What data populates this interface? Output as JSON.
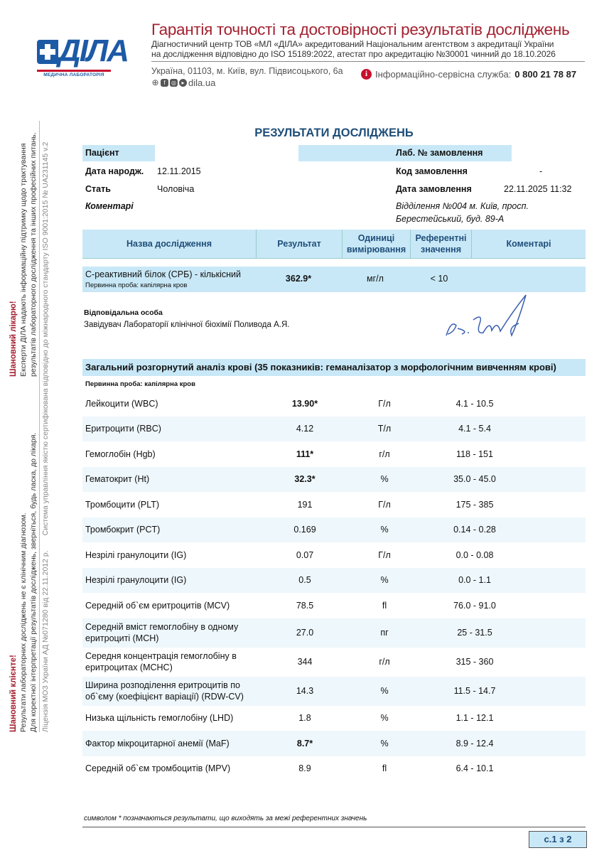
{
  "header": {
    "logo_text": "ДІЛА",
    "logo_subtitle": "МЕДИЧНА ЛАБОРАТОРІЯ",
    "title": "Гарантія точності та достовірності результатів досліджень",
    "accreditation_line1": "Діагностичний центр ТОВ «МЛ «ДІЛА» акредитований Національним агентством з акредитації України",
    "accreditation_line2": "на дослідження відповідно до ISO 15189:2022, атестат про акредитацію №30001 чинний до 18.10.2026",
    "address": "Україна, 01103, м. Київ, вул. Підвисоцького, 6а",
    "website": "dila.ua",
    "info_label": "Інформаційно-сервісна служба:",
    "info_phone": "0 800 21 78 87",
    "colors": {
      "brand_blue": "#1c5aa6",
      "brand_red": "#c8102e",
      "title_red": "#a3202f"
    }
  },
  "sidebar": {
    "client_heading": "Шановний клієнте!",
    "client_line1": "Результати лабораторних досліджень не є клінічним діагнозом.",
    "client_line2": "Для коректної інтерпретації результатів досліджень, зверніться, будь ласка, до лікаря.",
    "doctor_heading": "Шановний лікарю!",
    "doctor_line1": "Експерти ДІЛА надають інформаційну підтримку щодо трактування",
    "doctor_line2": "результатів лабораторного дослідження та інших професійних питань.",
    "license": "Ліцензія МОЗ України АД №071280 від 22.11.2012 р.",
    "iso": "Система управління якістю сертифікована відповідно до міжнародного стандарту ISO 9001:2015 № UA231145 v.2"
  },
  "document": {
    "title": "РЕЗУЛЬТАТИ ДОСЛІДЖЕНЬ",
    "patient_label": "Пацієнт",
    "dob_label": "Дата народж.",
    "dob": "12.11.2015",
    "sex_label": "Стать",
    "sex": "Чоловіча",
    "comments_label": "Коментарі",
    "lab_order_label": "Лаб. № замовлення",
    "order_code_label": "Код замовлення",
    "order_code": "-",
    "order_date_label": "Дата замовлення",
    "order_date": "22.11.2025 11:32",
    "branch_line1": "Відділення №004 м. Київ, просп.",
    "branch_line2": "Берестейський, буд. 89-А"
  },
  "table_header": {
    "name": "Назва дослідження",
    "result": "Результат",
    "units_1": "Одиниці",
    "units_2": "вимірювання",
    "ref_1": "Референтні",
    "ref_2": "значення",
    "comments": "Коментарі"
  },
  "crp": {
    "name": "С-реактивний білок (СРБ) - кількісний",
    "sample": "Первинна проба: капілярна кров",
    "result": "362.9*",
    "unit": "мг/л",
    "ref": "< 10"
  },
  "responsible": {
    "label": "Відповідальна особа",
    "name": "Завідувач Лабораторії клінічної біохімії Поливода А.Я.",
    "signature": "А. Пол"
  },
  "cbc": {
    "title": "Загальний розгорнутий аналіз крові (35 показників: геманалізатор з морфологічним вивченням крові)",
    "sample": "Первинна проба: капілярна кров",
    "rows": [
      {
        "name": "Лейкоцити (WBC)",
        "result": "13.90*",
        "unit": "Г/л",
        "ref": "4.1 - 10.5",
        "flag": true
      },
      {
        "name": "Еритроцити (RBC)",
        "result": "4.12",
        "unit": "Т/л",
        "ref": "4.1 - 5.4",
        "flag": false
      },
      {
        "name": "Гемоглобін (Hgb)",
        "result": "111*",
        "unit": "г/л",
        "ref": "118 - 151",
        "flag": true
      },
      {
        "name": "Гематокрит (Ht)",
        "result": "32.3*",
        "unit": "%",
        "ref": "35.0 - 45.0",
        "flag": true
      },
      {
        "name": "Тромбоцити (PLT)",
        "result": "191",
        "unit": "Г/л",
        "ref": "175 - 385",
        "flag": false
      },
      {
        "name": "Тромбокрит (PCT)",
        "result": "0.169",
        "unit": "%",
        "ref": "0.14 - 0.28",
        "flag": false
      },
      {
        "name": "Незрілі гранулоцити (IG)",
        "result": "0.07",
        "unit": "Г/л",
        "ref": "0.0 - 0.08",
        "flag": false
      },
      {
        "name": "Незрілі гранулоцити (IG)",
        "result": "0.5",
        "unit": "%",
        "ref": "0.0 - 1.1",
        "flag": false
      },
      {
        "name": "Середній об`єм еритроцитів (MCV)",
        "result": "78.5",
        "unit": "fl",
        "ref": "76.0 - 91.0",
        "flag": false
      },
      {
        "name": "Середній вміст гемоглобіну в одному еритроциті (MCH)",
        "result": "27.0",
        "unit": "пг",
        "ref": "25 - 31.5",
        "flag": false
      },
      {
        "name": "Середня концентрація гемоглобіну в еритроцитах (MCHC)",
        "result": "344",
        "unit": "г/л",
        "ref": "315 - 360",
        "flag": false
      },
      {
        "name": "Ширина розподілення еритроцитів по об`єму (коефіцієнт варіації) (RDW-CV)",
        "result": "14.3",
        "unit": "%",
        "ref": "11.5 - 14.7",
        "flag": false
      },
      {
        "name": "Низька щільність гемоглобіну (LHD)",
        "result": "1.8",
        "unit": "%",
        "ref": "1.1 - 12.1",
        "flag": false
      },
      {
        "name": "Фактор мікроцитарної анемії (MaF)",
        "result": "8.7*",
        "unit": "%",
        "ref": "8.9 - 12.4",
        "flag": true
      },
      {
        "name": "Середній об`єм тромбоцитів (MPV)",
        "result": "8.9",
        "unit": "fl",
        "ref": "6.4 - 10.1",
        "flag": false
      }
    ]
  },
  "footer": {
    "note": "символом * позначаються результати, що виходять за межі референтних значень",
    "page": "с.1 з 2"
  }
}
